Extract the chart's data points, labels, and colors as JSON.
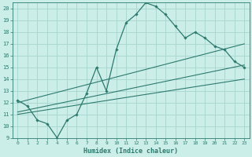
{
  "xlabel": "Humidex (Indice chaleur)",
  "bg_color": "#cceee8",
  "grid_color": "#aad8d0",
  "line_color": "#2d7a6e",
  "xlim": [
    -0.5,
    23.5
  ],
  "ylim": [
    9,
    20.5
  ],
  "xticks": [
    0,
    1,
    2,
    3,
    4,
    5,
    6,
    7,
    8,
    9,
    10,
    11,
    12,
    13,
    14,
    15,
    16,
    17,
    18,
    19,
    20,
    21,
    22,
    23
  ],
  "yticks": [
    9,
    10,
    11,
    12,
    13,
    14,
    15,
    16,
    17,
    18,
    19,
    20
  ],
  "main_x": [
    0,
    1,
    2,
    3,
    4,
    5,
    6,
    7,
    8,
    9,
    10,
    11,
    12,
    13,
    14,
    15,
    16,
    17,
    18,
    19,
    20,
    21,
    22,
    23
  ],
  "main_y": [
    12.2,
    11.7,
    10.5,
    10.2,
    9.0,
    10.5,
    11.0,
    12.8,
    15.0,
    13.0,
    16.5,
    18.8,
    19.5,
    20.5,
    20.2,
    19.5,
    18.5,
    17.5,
    18.0,
    17.5,
    16.8,
    16.5,
    15.5,
    15.0
  ],
  "trend1_x": [
    0,
    23
  ],
  "trend1_y": [
    12.0,
    17.0
  ],
  "trend2_x": [
    0,
    23
  ],
  "trend2_y": [
    11.2,
    15.2
  ],
  "trend3_x": [
    0,
    23
  ],
  "trend3_y": [
    11.0,
    14.0
  ]
}
